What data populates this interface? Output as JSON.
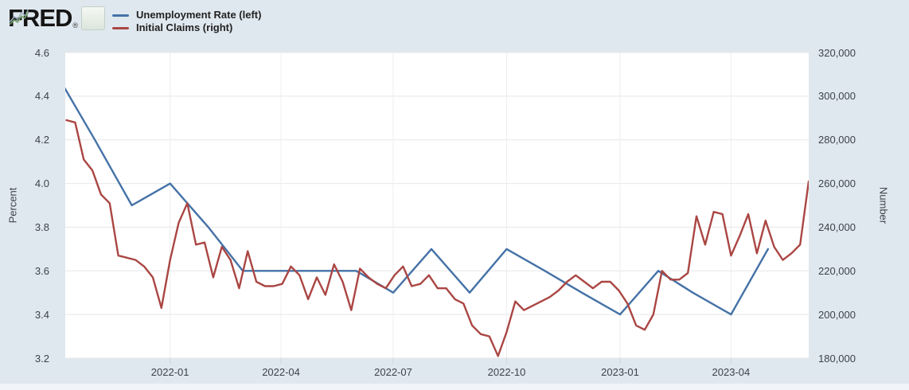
{
  "header": {
    "logo_text": "FRED",
    "registered_mark": "®",
    "legend": [
      {
        "label": "Unemployment Rate (left)",
        "color": "#4572a7"
      },
      {
        "label": "Initial Claims (right)",
        "color": "#aa4643"
      }
    ]
  },
  "colors": {
    "background": "#e0e8ef",
    "plot_background": "#ffffff",
    "grid_horizontal": "#e7e7e7",
    "grid_vertical": "#eeeeee",
    "tick_mark": "#cfd4d9",
    "tick_text": "#3c434a",
    "unemployment_line": "#4572a7",
    "claims_line": "#aa4643",
    "bottom_strip": "#f0f4f8"
  },
  "chart_data": {
    "type": "line",
    "title": "",
    "grid": true,
    "legend_position": "top-left",
    "x_axis": {
      "range": [
        "2021-10-08",
        "2023-06-03"
      ],
      "ticks": [
        {
          "label": "2022-01",
          "date": "2022-01-01"
        },
        {
          "label": "2022-04",
          "date": "2022-04-01"
        },
        {
          "label": "2022-07",
          "date": "2022-07-01"
        },
        {
          "label": "2022-10",
          "date": "2022-10-01"
        },
        {
          "label": "2023-01",
          "date": "2023-01-01"
        },
        {
          "label": "2023-04",
          "date": "2023-04-01"
        }
      ]
    },
    "y_axis_left": {
      "label": "Percent",
      "range": [
        3.2,
        4.6
      ],
      "ticks": [
        {
          "label": "4.6",
          "value": 4.6
        },
        {
          "label": "4.4",
          "value": 4.4
        },
        {
          "label": "4.2",
          "value": 4.2
        },
        {
          "label": "4.0",
          "value": 4.0
        },
        {
          "label": "3.8",
          "value": 3.8
        },
        {
          "label": "3.6",
          "value": 3.6
        },
        {
          "label": "3.4",
          "value": 3.4
        },
        {
          "label": "3.2",
          "value": 3.2
        }
      ]
    },
    "y_axis_right": {
      "label": "Number",
      "range": [
        180000,
        320000
      ],
      "ticks": [
        {
          "label": "320,000",
          "value": 320000
        },
        {
          "label": "300,000",
          "value": 300000
        },
        {
          "label": "280,000",
          "value": 280000
        },
        {
          "label": "260,000",
          "value": 260000
        },
        {
          "label": "240,000",
          "value": 240000
        },
        {
          "label": "220,000",
          "value": 220000
        },
        {
          "label": "200,000",
          "value": 200000
        },
        {
          "label": "180,000",
          "value": 180000
        }
      ]
    },
    "series": [
      {
        "name": "Unemployment Rate (left)",
        "axis": "left",
        "color": "#4572a7",
        "units": "Percent",
        "start_date": "2021-10-01",
        "interval": "monthly",
        "values": [
          4.5,
          4.2,
          3.9,
          4.0,
          3.8,
          3.6,
          3.6,
          3.6,
          3.6,
          3.5,
          3.7,
          3.5,
          3.7,
          3.6,
          3.5,
          3.4,
          3.6,
          3.5,
          3.4,
          3.7
        ]
      },
      {
        "name": "Initial Claims (right)",
        "axis": "right",
        "color": "#aa4643",
        "units": "Number",
        "start_date": "2021-10-09",
        "interval": "weekly",
        "values": [
          289000,
          288000,
          271000,
          266000,
          255000,
          251000,
          227000,
          226000,
          225000,
          222000,
          217000,
          203000,
          225000,
          242000,
          251000,
          232000,
          233000,
          217000,
          231000,
          225000,
          212000,
          229000,
          215000,
          213000,
          213000,
          214000,
          222000,
          218000,
          207000,
          217000,
          209000,
          223000,
          215000,
          202000,
          221000,
          217000,
          214000,
          212000,
          218000,
          222000,
          213000,
          214000,
          218000,
          212000,
          212000,
          207000,
          205000,
          195000,
          191000,
          190000,
          181000,
          192000,
          206000,
          202000,
          204000,
          206000,
          208000,
          211000,
          215000,
          218000,
          215000,
          212000,
          215000,
          215000,
          211000,
          205000,
          195000,
          193000,
          200000,
          220000,
          216000,
          216000,
          219000,
          245000,
          232000,
          247000,
          246000,
          227000,
          236000,
          246000,
          228000,
          243000,
          231000,
          225000,
          228000,
          232000,
          261000
        ]
      }
    ]
  }
}
